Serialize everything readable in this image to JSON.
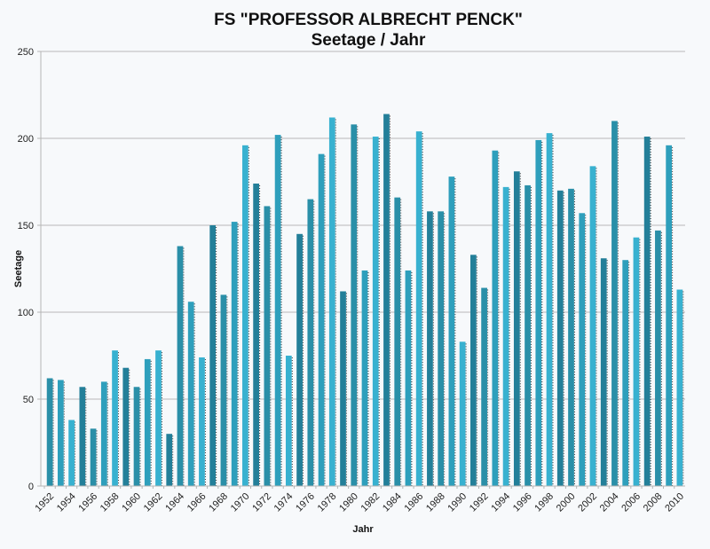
{
  "chart_data": {
    "type": "bar",
    "title": "FS \"PROFESSOR ALBRECHT PENCK\"",
    "subtitle": "Seetage / Jahr",
    "xlabel": "Jahr",
    "ylabel": "Seetage",
    "ylim": [
      0,
      250
    ],
    "yticks": [
      "0",
      "50",
      "100",
      "150",
      "200",
      "250"
    ],
    "grid": true,
    "categories": [
      "1952",
      "1953",
      "1954",
      "1955",
      "1956",
      "1957",
      "1958",
      "1959",
      "1960",
      "1961",
      "1962",
      "1963",
      "1964",
      "1965",
      "1966",
      "1967",
      "1968",
      "1969",
      "1970",
      "1971",
      "1972",
      "1973",
      "1974",
      "1975",
      "1976",
      "1977",
      "1978",
      "1979",
      "1980",
      "1981",
      "1982",
      "1983",
      "1984",
      "1985",
      "1986",
      "1987",
      "1988",
      "1989",
      "1990",
      "1991",
      "1992",
      "1993",
      "1994",
      "1995",
      "1996",
      "1997",
      "1998",
      "1999",
      "2000",
      "2001",
      "2002",
      "2003",
      "2004",
      "2005",
      "2006",
      "2007",
      "2008",
      "2009",
      "2010"
    ],
    "xtick_labels": [
      "1952",
      "1954",
      "1956",
      "1958",
      "1960",
      "1962",
      "1964",
      "1966",
      "1968",
      "1970",
      "1972",
      "1974",
      "1976",
      "1978",
      "1980",
      "1982",
      "1984",
      "1986",
      "1988",
      "1990",
      "1992",
      "1994",
      "1996",
      "1998",
      "2000",
      "2002",
      "2004",
      "2006",
      "2008",
      "2010"
    ],
    "values": [
      62,
      61,
      38,
      57,
      33,
      60,
      78,
      68,
      57,
      73,
      78,
      30,
      138,
      106,
      74,
      150,
      110,
      152,
      196,
      174,
      161,
      202,
      75,
      145,
      165,
      191,
      212,
      112,
      208,
      124,
      201,
      214,
      166,
      124,
      204,
      158,
      158,
      178,
      83,
      133,
      114,
      193,
      172,
      181,
      173,
      199,
      203,
      170,
      171,
      157,
      184,
      131,
      210,
      130,
      143,
      201,
      147,
      196,
      113
    ],
    "colors": [
      "#2a8fa8",
      "#2e9fbc",
      "#38b1d0",
      "#237f99"
    ]
  }
}
